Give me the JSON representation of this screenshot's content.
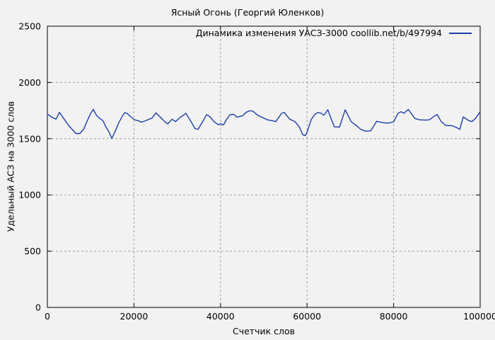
{
  "title": "Ясный Огонь (Георгий Юленков)",
  "colors": {
    "background": "#f2f2f2",
    "frame": "#000000",
    "grid": "#9e9e9e",
    "line": "#1c3fa8"
  },
  "chart_data": {
    "type": "line",
    "title": "Ясный Огонь (Георгий Юленков)",
    "xlabel": "Счетчик слов",
    "ylabel": "Удельный АСЗ на 3000 слов",
    "xlim": [
      0,
      100000
    ],
    "ylim": [
      0,
      2500
    ],
    "xticks": [
      0,
      20000,
      40000,
      60000,
      80000,
      100000
    ],
    "yticks": [
      0,
      500,
      1000,
      1500,
      2000,
      2500
    ],
    "grid": true,
    "legend_position": "top-right-inside",
    "series": [
      {
        "name": "Динамика изменения УАСЗ-3000  coollib.net/b/497994",
        "color": "#1c3fa8",
        "points": [
          [
            0,
            1720
          ],
          [
            1000,
            1692
          ],
          [
            2000,
            1674
          ],
          [
            2800,
            1734
          ],
          [
            4000,
            1667
          ],
          [
            5000,
            1613
          ],
          [
            6000,
            1572
          ],
          [
            6600,
            1546
          ],
          [
            7500,
            1546
          ],
          [
            8400,
            1585
          ],
          [
            9200,
            1658
          ],
          [
            10000,
            1725
          ],
          [
            10600,
            1760
          ],
          [
            11400,
            1704
          ],
          [
            12200,
            1677
          ],
          [
            12800,
            1662
          ],
          [
            13600,
            1600
          ],
          [
            14300,
            1555
          ],
          [
            14900,
            1502
          ],
          [
            15700,
            1569
          ],
          [
            16500,
            1642
          ],
          [
            17400,
            1706
          ],
          [
            17900,
            1732
          ],
          [
            18400,
            1726
          ],
          [
            19300,
            1694
          ],
          [
            20100,
            1669
          ],
          [
            21000,
            1660
          ],
          [
            21700,
            1646
          ],
          [
            22900,
            1663
          ],
          [
            24200,
            1684
          ],
          [
            25100,
            1730
          ],
          [
            26300,
            1684
          ],
          [
            27200,
            1648
          ],
          [
            27800,
            1631
          ],
          [
            28800,
            1673
          ],
          [
            29600,
            1652
          ],
          [
            30700,
            1690
          ],
          [
            31500,
            1710
          ],
          [
            32000,
            1726
          ],
          [
            33200,
            1652
          ],
          [
            34100,
            1590
          ],
          [
            34800,
            1583
          ],
          [
            35900,
            1652
          ],
          [
            36800,
            1714
          ],
          [
            37600,
            1694
          ],
          [
            38500,
            1652
          ],
          [
            39500,
            1624
          ],
          [
            40000,
            1633
          ],
          [
            40700,
            1622
          ],
          [
            41400,
            1671
          ],
          [
            42200,
            1713
          ],
          [
            43000,
            1717
          ],
          [
            43800,
            1692
          ],
          [
            45100,
            1704
          ],
          [
            46000,
            1736
          ],
          [
            46700,
            1747
          ],
          [
            47400,
            1747
          ],
          [
            48200,
            1721
          ],
          [
            49000,
            1700
          ],
          [
            50000,
            1683
          ],
          [
            50900,
            1667
          ],
          [
            52000,
            1660
          ],
          [
            52800,
            1652
          ],
          [
            54100,
            1725
          ],
          [
            54700,
            1734
          ],
          [
            56000,
            1673
          ],
          [
            57200,
            1652
          ],
          [
            58200,
            1606
          ],
          [
            59000,
            1535
          ],
          [
            59600,
            1528
          ],
          [
            60000,
            1558
          ],
          [
            61000,
            1673
          ],
          [
            61800,
            1715
          ],
          [
            62400,
            1731
          ],
          [
            63100,
            1729
          ],
          [
            63900,
            1709
          ],
          [
            64800,
            1757
          ],
          [
            65600,
            1673
          ],
          [
            66300,
            1606
          ],
          [
            67500,
            1603
          ],
          [
            68800,
            1757
          ],
          [
            70200,
            1652
          ],
          [
            71400,
            1617
          ],
          [
            72400,
            1583
          ],
          [
            73600,
            1566
          ],
          [
            74700,
            1570
          ],
          [
            76100,
            1655
          ],
          [
            77200,
            1645
          ],
          [
            78500,
            1638
          ],
          [
            79500,
            1645
          ],
          [
            80000,
            1650
          ],
          [
            81000,
            1725
          ],
          [
            81700,
            1740
          ],
          [
            82400,
            1726
          ],
          [
            83400,
            1760
          ],
          [
            84900,
            1680
          ],
          [
            85900,
            1668
          ],
          [
            87300,
            1665
          ],
          [
            88300,
            1668
          ],
          [
            89400,
            1700
          ],
          [
            90100,
            1715
          ],
          [
            91000,
            1652
          ],
          [
            92100,
            1617
          ],
          [
            93500,
            1615
          ],
          [
            94500,
            1600
          ],
          [
            95300,
            1583
          ],
          [
            96100,
            1694
          ],
          [
            97300,
            1662
          ],
          [
            98100,
            1652
          ],
          [
            99000,
            1683
          ],
          [
            100000,
            1740
          ]
        ]
      }
    ]
  }
}
